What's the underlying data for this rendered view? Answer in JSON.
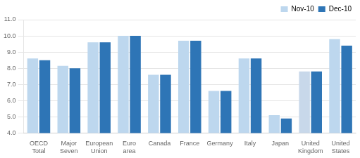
{
  "chart_data": {
    "type": "bar",
    "categories": [
      "OECD\nTotal",
      "Major\nSeven",
      "European\nUnion",
      "Euro\narea",
      "Canada",
      "France",
      "Germany",
      "Italy",
      "Japan",
      "United\nKingdom",
      "United\nStates"
    ],
    "series": [
      {
        "name": "Nov-10",
        "color": "#bdd7ee",
        "colors": [
          "#bdd7ee",
          "#bdd7ee",
          "#bdd7ee",
          "#bdd7ee",
          "#bdd7ee",
          "#bdd7ee",
          "#bdd7ee",
          "#bdd7ee",
          "#bdd7ee",
          "#c8d8ea",
          "#bdd7ee"
        ],
        "values": [
          8.6,
          8.15,
          9.6,
          10.0,
          7.6,
          9.7,
          6.6,
          8.6,
          5.1,
          7.8,
          9.8
        ]
      },
      {
        "name": "Dec-10",
        "color": "#2e75b6",
        "values": [
          8.5,
          8.0,
          9.6,
          10.0,
          7.6,
          9.7,
          6.6,
          8.6,
          4.9,
          7.8,
          9.4
        ]
      }
    ],
    "ylim": [
      4.0,
      11.0
    ],
    "yticks": [
      {
        "value": 4.0,
        "label": "4.0"
      },
      {
        "value": 5.0,
        "label": "5.0"
      },
      {
        "value": 6.0,
        "label": "6.0"
      },
      {
        "value": 7.0,
        "label": "7.0"
      },
      {
        "value": 8.0,
        "label": "8.0"
      },
      {
        "value": 9.0,
        "label": "9.0"
      },
      {
        "value": 10.0,
        "label": "10.0"
      },
      {
        "value": 11.0,
        "label": "11.0"
      }
    ],
    "grid": true,
    "legend": "upper right"
  }
}
